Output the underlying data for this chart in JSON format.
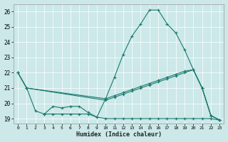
{
  "xlabel": "Humidex (Indice chaleur)",
  "bg_color": "#cce8e8",
  "grid_color": "#ffffff",
  "line_color": "#1a7a6e",
  "xlim": [
    -0.5,
    23.5
  ],
  "ylim": [
    18.7,
    26.5
  ],
  "yticks": [
    19,
    20,
    21,
    22,
    23,
    24,
    25,
    26
  ],
  "xticks": [
    0,
    1,
    2,
    3,
    4,
    5,
    6,
    7,
    8,
    9,
    10,
    11,
    12,
    13,
    14,
    15,
    16,
    17,
    18,
    19,
    20,
    21,
    22,
    23
  ],
  "line1": {
    "x": [
      0,
      1,
      2,
      3,
      4,
      5,
      6,
      7,
      8,
      9,
      10,
      11,
      12,
      13,
      14,
      15,
      16,
      17,
      18,
      19,
      20,
      21,
      22,
      23
    ],
    "y": [
      22,
      21,
      19.5,
      19.3,
      19.8,
      19.7,
      19.8,
      19.8,
      19.4,
      19.1,
      20.3,
      21.7,
      23.2,
      24.4,
      25.2,
      26.1,
      26.1,
      25.2,
      24.6,
      23.5,
      22.2,
      21.0,
      19.2,
      18.9
    ]
  },
  "line2": {
    "x": [
      0,
      1,
      10,
      11,
      12,
      13,
      14,
      15,
      16,
      17,
      18,
      19,
      20,
      21,
      22,
      23
    ],
    "y": [
      22,
      21,
      20.3,
      20.5,
      20.7,
      20.9,
      21.1,
      21.3,
      21.5,
      21.7,
      21.9,
      22.1,
      22.2,
      21.0,
      19.2,
      18.9
    ]
  },
  "line3": {
    "x": [
      0,
      1,
      10,
      11,
      12,
      13,
      14,
      15,
      16,
      17,
      18,
      19,
      20,
      21,
      22,
      23
    ],
    "y": [
      22,
      21,
      20.2,
      20.4,
      20.6,
      20.8,
      21.0,
      21.2,
      21.4,
      21.6,
      21.8,
      22.0,
      22.2,
      21.0,
      19.2,
      18.9
    ]
  },
  "line4": {
    "x": [
      3,
      4,
      5,
      6,
      7,
      8,
      9,
      10,
      11,
      12,
      13,
      14,
      15,
      16,
      17,
      18,
      19,
      20,
      21,
      22,
      23
    ],
    "y": [
      19.3,
      19.3,
      19.3,
      19.3,
      19.3,
      19.3,
      19.1,
      19.0,
      19.0,
      19.0,
      19.0,
      19.0,
      19.0,
      19.0,
      19.0,
      19.0,
      19.0,
      19.0,
      19.0,
      19.0,
      18.9
    ]
  }
}
